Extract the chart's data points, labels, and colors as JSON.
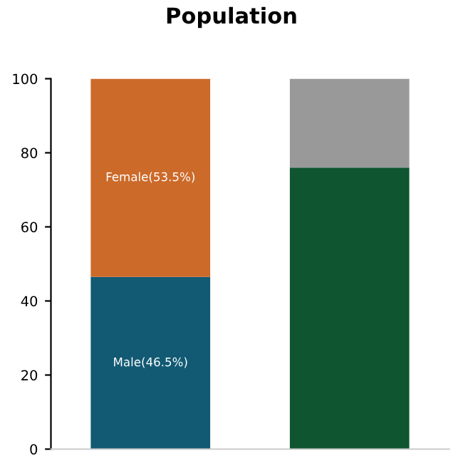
{
  "chart_data": {
    "type": "bar",
    "title": "Population",
    "categories": [
      null,
      null
    ],
    "stacked": true,
    "series": [
      {
        "colors": [
          "#125a73",
          "#0f5530"
        ],
        "values": [
          46.5,
          76
        ],
        "value_labels": [
          "Male(46.5%)",
          null
        ]
      },
      {
        "colors": [
          "#cc6a2a",
          "#999999"
        ],
        "values": [
          53.5,
          24
        ],
        "value_labels": [
          "Female(53.5%)",
          null
        ]
      }
    ],
    "ylim": [
      0,
      100
    ],
    "yticks": [
      0,
      20,
      40,
      60,
      80,
      100
    ],
    "tick_labels": "y",
    "grid": false
  }
}
